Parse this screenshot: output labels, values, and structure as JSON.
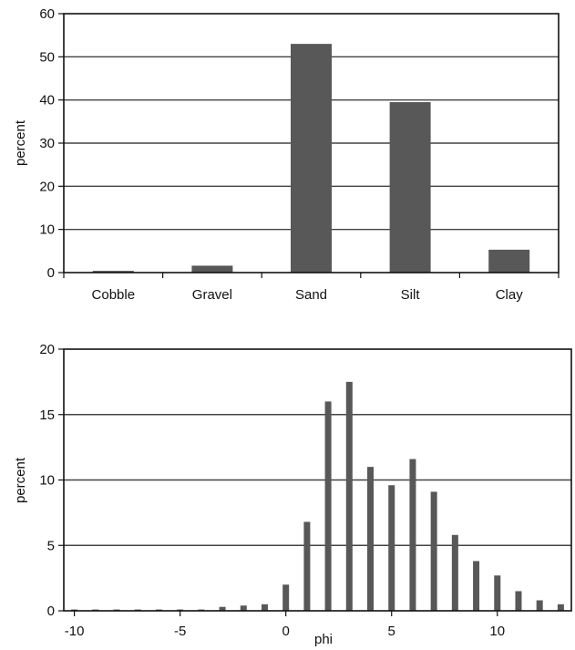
{
  "chart_data": [
    {
      "type": "bar",
      "categories": [
        "Cobble",
        "Gravel",
        "Sand",
        "Silt",
        "Clay"
      ],
      "values": [
        0.4,
        1.6,
        53,
        39.5,
        5.3
      ],
      "ylabel": "percent",
      "xlabel": "",
      "ylim": [
        0,
        60
      ],
      "yticks": [
        "0",
        "10",
        "20",
        "30",
        "40",
        "50",
        "60"
      ],
      "grid": true,
      "color": "#585858"
    },
    {
      "type": "bar",
      "x": [
        -10,
        -9,
        -8,
        -7,
        -6,
        -5,
        -4,
        -3,
        -2,
        -1,
        0,
        1,
        2,
        3,
        4,
        5,
        6,
        7,
        8,
        9,
        10,
        11,
        12,
        13
      ],
      "values": [
        0.1,
        0.1,
        0.1,
        0.1,
        0.1,
        0.1,
        0.1,
        0.3,
        0.4,
        0.5,
        2.0,
        6.8,
        16.0,
        17.5,
        11.0,
        9.6,
        11.6,
        9.1,
        5.8,
        3.8,
        2.7,
        1.5,
        0.8,
        0.5
      ],
      "ylabel": "percent",
      "xlabel": "phi",
      "xlim": [
        -10.5,
        13.5
      ],
      "ylim": [
        0,
        20
      ],
      "xticks": [
        "-10",
        "-5",
        "0",
        "5",
        "10"
      ],
      "yticks": [
        "0",
        "5",
        "10",
        "15",
        "20"
      ],
      "grid": true,
      "color": "#585858"
    }
  ]
}
